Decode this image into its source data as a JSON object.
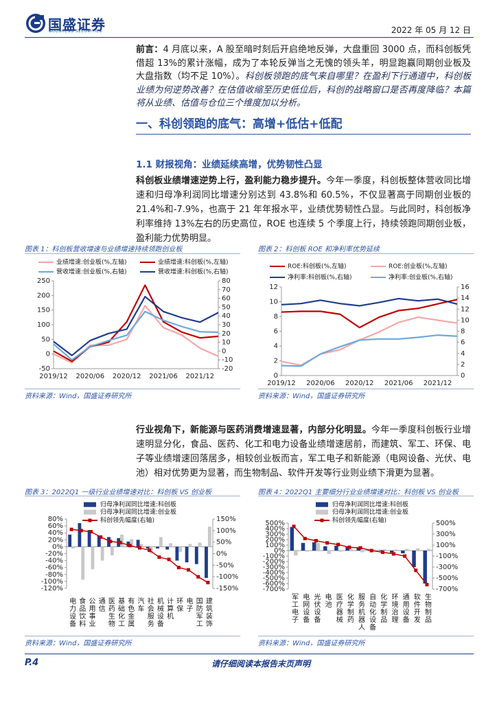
{
  "header": {
    "brand": "国盛证券",
    "brand_en": "GUOSHENG SECURITIES",
    "date": "2022 年 05 月 12 日"
  },
  "intro": {
    "label": "前言：",
    "text": "4 月底以来，A 股至暗时刻后开启绝地反弹，大盘重回 3000 点，而科创板凭借超 13%的累计涨幅，成为了本轮反弹当之无愧的领头羊，明显跑赢同期创业板及大盘指数（均不足 10%）。",
    "questions": "科创板领跑的底气来自哪里？在盈利下行通道中，科创板业绩为何逆势改善？在估值收缩至历史低位后，科创的战略窗口是否再度降临？本篇将从业绩、估值与仓位三个维度加以分析。"
  },
  "section": {
    "title": "一、科创领跑的底气：高增+低估+低配"
  },
  "subsection": {
    "title": "1.1 财报视角：业绩延续高增，优势韧性凸显"
  },
  "paragraphs": [
    {
      "lead": "科创板业绩增速逆势上行，盈利能力稳步提升。",
      "text": "今年一季度，科创板整体营收同比增速和归母净利润同比增速分别达到 43.8%和 60.5%，不仅显著高于同期创业板的 21.4%和-7.9%，也高于 21 年年报水平，业绩优势韧性凸显。与此同时，科创板净利率维持 13%左右的历史高位，ROE 也连续 5 个季度上行，持续领跑同期创业板，盈利能力优势明显。"
    },
    {
      "lead": "行业视角下，新能源与医药消费增速显著，内部分化明显。",
      "text": "今年一季度科创板行业增速明显分化，食品、医药、化工和电力设备业绩增速居前，而建筑、军工、环保、电子等业绩增速回落居多，相较创业板而言，军工电子和新能源（电网设备、光伏、电池）相对优势更为显著，而生物制品、软件开发等行业则业绩下滑更为显著。"
    }
  ],
  "chart_data": [
    {
      "type": "line",
      "title": "图表 1：科创板营收增速与业绩增速持续领跑创业板",
      "source": "资料来源：Wind，国盛证券研究所",
      "categories": [
        "2019/12",
        null,
        "2020/06",
        null,
        "2020/12",
        null,
        "2021/06",
        null,
        "2021/12",
        null
      ],
      "ylim": [
        -50,
        250
      ],
      "yticks": [
        -50,
        0,
        50,
        100,
        150,
        200,
        250
      ],
      "y2lim": [
        -20,
        80
      ],
      "y2ticks": [
        -20,
        -10,
        0,
        10,
        20,
        30,
        40,
        50,
        60,
        70,
        80
      ],
      "series": [
        {
          "name": "业绩增速:创业板(%,左轴)",
          "color": "#f4a7a7",
          "values": [
            0,
            -30,
            30,
            30,
            50,
            165,
            90,
            65,
            20,
            -7.9
          ]
        },
        {
          "name": "业绩增速:科创板(%,左轴)",
          "color": "#c00000",
          "values": [
            10,
            -25,
            25,
            40,
            110,
            235,
            110,
            75,
            55,
            60.5
          ]
        },
        {
          "name": "营收增速:创业板(%,右轴)",
          "color": "#6fa8dc",
          "axis": "y2",
          "values": [
            8,
            -10,
            5,
            12,
            18,
            45,
            35,
            28,
            22,
            21.4
          ]
        },
        {
          "name": "营收增速:科创板(%,右轴)",
          "color": "#1f3d8c",
          "axis": "y2",
          "values": [
            11,
            -5,
            12,
            20,
            25,
            62,
            45,
            38,
            33,
            43.8
          ]
        }
      ]
    },
    {
      "type": "line",
      "title": "图表 2：科创板 ROE 和净利率优势延续",
      "source": "资料来源：Wind，国盛证券研究所",
      "categories": [
        "2019/12",
        null,
        "2020/06",
        null,
        "2020/12",
        null,
        "2021/06",
        null,
        "2021/12",
        null
      ],
      "ylim": [
        0,
        12
      ],
      "yticks": [
        0,
        2,
        4,
        6,
        8,
        10,
        12
      ],
      "y2lim": [
        0,
        16
      ],
      "y2ticks": [
        0,
        2,
        4,
        6,
        8,
        10,
        12,
        14,
        16
      ],
      "series": [
        {
          "name": "ROE:科创板(%,左轴)",
          "color": "#c00000",
          "values": [
            8.6,
            8.7,
            8.7,
            8.3,
            6.5,
            7.9,
            8.8,
            9.1,
            9.7,
            10.3
          ]
        },
        {
          "name": "ROE:创业板(%,左轴)",
          "color": "#f4a7a7",
          "values": [
            1.9,
            1.4,
            2.9,
            3.5,
            4.8,
            5.9,
            7.2,
            7.9,
            7.5,
            7.1
          ]
        },
        {
          "name": "净利率:科创板(%,右轴)",
          "color": "#1f3d8c",
          "axis": "y2",
          "values": [
            12.8,
            13.0,
            13.6,
            13.0,
            12.6,
            13.2,
            13.9,
            13.5,
            13.8,
            12.9
          ]
        },
        {
          "name": "净利率:创业板(%,右轴)",
          "color": "#6fa8dc",
          "axis": "y2",
          "values": [
            1.8,
            1.7,
            3.9,
            5.2,
            6.4,
            6.6,
            6.6,
            6.9,
            7.3,
            7.1
          ]
        }
      ]
    },
    {
      "type": "bar",
      "title": "图表 3：2022Q1 一级行业业绩增速对比：科创板 VS 创业板",
      "source": "资料来源：Wind，国盛证券研究所",
      "categories": [
        "电力设备",
        "食品饮料",
        "公用事业",
        "通信",
        "医药生物",
        "基础化工",
        "有色金属",
        "汽车",
        "社会服务",
        "机械设备",
        "计算机",
        "环保",
        "电子",
        "国防军工",
        "建筑装饰"
      ],
      "ylim": [
        -120,
        80
      ],
      "yticks": [
        {
          "value": -120,
          "label": "-120%"
        },
        {
          "value": -100,
          "label": "-100%"
        },
        {
          "value": -80,
          "label": "-80%"
        },
        {
          "value": -60,
          "label": "-60%"
        },
        {
          "value": -40,
          "label": "-40%"
        },
        {
          "value": -20,
          "label": "-20%"
        },
        {
          "value": 0,
          "label": "0%"
        },
        {
          "value": 20,
          "label": "20%"
        },
        {
          "value": 40,
          "label": "40%"
        },
        {
          "value": 60,
          "label": "60%"
        },
        {
          "value": 80,
          "label": "80%"
        }
      ],
      "y2lim": [
        -150,
        150
      ],
      "y2ticks": [
        {
          "value": -150,
          "label": "-150%"
        },
        {
          "value": -100,
          "label": "-100%"
        },
        {
          "value": -50,
          "label": "-50%"
        },
        {
          "value": 0,
          "label": "0%"
        },
        {
          "value": 50,
          "label": "50%"
        },
        {
          "value": 100,
          "label": "100%"
        },
        {
          "value": 150,
          "label": "150%"
        }
      ],
      "series": [
        {
          "name": "归母净利润同比增速:科创板",
          "color": "#1f3d8c",
          "type": "bar",
          "values": [
            35,
            68,
            48,
            32,
            28,
            25,
            15,
            20,
            -5,
            -5,
            -8,
            -40,
            -45,
            -50,
            -90
          ]
        },
        {
          "name": "归母净利润同比增速:创业板",
          "color": "#c8c8c8",
          "type": "bar",
          "values": [
            -5,
            -95,
            -65,
            -40,
            -25,
            35,
            22,
            8,
            -20,
            28,
            10,
            -15,
            8,
            12,
            58
          ]
        },
        {
          "name": "科创领先幅度(右轴)",
          "color": "#c00000",
          "type": "line",
          "axis": "y2",
          "values": [
            105,
            100,
            95,
            72,
            53,
            48,
            35,
            25,
            15,
            -15,
            -25,
            -60,
            -70,
            -100,
            -125
          ]
        }
      ]
    },
    {
      "type": "bar",
      "title": "图表 4：2022Q1 主要细分行业业绩增速对比：科创板 VS 创业板",
      "source": "资料来源：Wind，国盛证券研究所",
      "categories": [
        "军工电子",
        "电网设备",
        "光伏设备",
        "电池",
        "医疗器械",
        "化学制药",
        "服务机器人",
        "自动化设备",
        "化学制品",
        "环境治理",
        "通用设备",
        "软件开发",
        "生物制品"
      ],
      "ylim": [
        -700,
        500
      ],
      "yticks": [
        {
          "value": -700,
          "label": "-700%"
        },
        {
          "value": -600,
          "label": "-600%"
        },
        {
          "value": -500,
          "label": "-500%"
        },
        {
          "value": -400,
          "label": "-400%"
        },
        {
          "value": -300,
          "label": "-300%"
        },
        {
          "value": -200,
          "label": "-200%"
        },
        {
          "value": -100,
          "label": "-100%"
        },
        {
          "value": 0,
          "label": "0%"
        },
        {
          "value": 100,
          "label": "100%"
        },
        {
          "value": 200,
          "label": "200%"
        },
        {
          "value": 300,
          "label": "300%"
        },
        {
          "value": 400,
          "label": "400%"
        },
        {
          "value": 500,
          "label": "500%"
        }
      ],
      "y2lim": [
        -700,
        500
      ],
      "y2ticks": [
        {
          "value": -700,
          "label": "-700%"
        },
        {
          "value": -500,
          "label": "-500%"
        },
        {
          "value": -300,
          "label": "-300%"
        },
        {
          "value": -100,
          "label": "-100%"
        },
        {
          "value": 100,
          "label": "100%"
        },
        {
          "value": 300,
          "label": "300%"
        },
        {
          "value": 500,
          "label": "500%"
        }
      ],
      "series": [
        {
          "name": "归母净利润同比增速:科创板",
          "color": "#1f3d8c",
          "type": "bar",
          "values": [
            430,
            140,
            150,
            80,
            90,
            70,
            60,
            20,
            10,
            -40,
            -50,
            -300,
            -600
          ]
        },
        {
          "name": "归母净利润同比增速:创业板",
          "color": "#c8c8c8",
          "type": "bar",
          "values": [
            -90,
            -20,
            140,
            -60,
            -20,
            30,
            -30,
            30,
            25,
            20,
            30,
            40,
            30
          ]
        },
        {
          "name": "科创领先幅度(右轴)",
          "color": "#c00000",
          "type": "line",
          "axis": "y2",
          "values": [
            440,
            220,
            180,
            140,
            110,
            60,
            50,
            0,
            -30,
            -60,
            -100,
            -360,
            -620
          ]
        }
      ]
    }
  ],
  "footer": {
    "page": "P.4",
    "notice": "请仔细阅读本报告末页声明"
  }
}
